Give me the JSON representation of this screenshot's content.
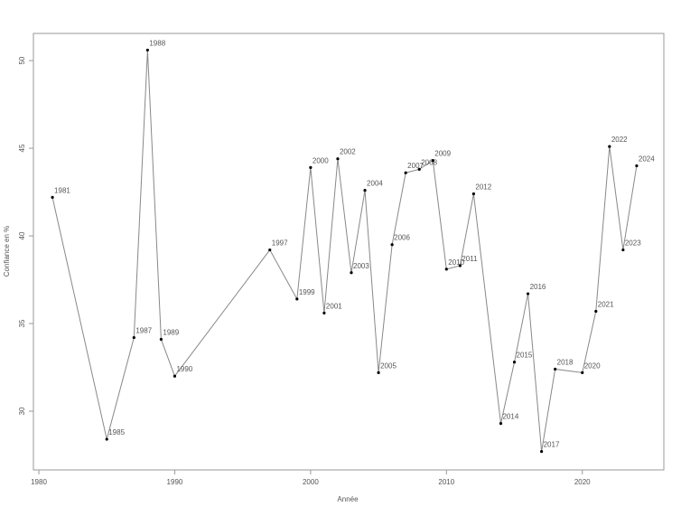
{
  "chart_data": {
    "type": "line",
    "x_label": "Année",
    "y_label": "Confiance en %",
    "x": [
      1981,
      1985,
      1987,
      1988,
      1989,
      1990,
      1997,
      1999,
      2000,
      2001,
      2002,
      2003,
      2004,
      2005,
      2006,
      2007,
      2008,
      2009,
      2010,
      2011,
      2012,
      2014,
      2015,
      2016,
      2017,
      2018,
      2020,
      2021,
      2022,
      2023,
      2024
    ],
    "series": [
      {
        "color": "#888888",
        "marker_color": "#000000",
        "values": [
          42.2,
          28.4,
          34.2,
          50.6,
          34.1,
          32.0,
          39.2,
          36.4,
          43.9,
          35.6,
          44.4,
          37.9,
          42.6,
          32.2,
          39.5,
          43.6,
          43.8,
          44.3,
          38.1,
          38.3,
          42.4,
          29.3,
          32.8,
          36.7,
          27.7,
          32.4,
          32.2,
          35.7,
          45.1,
          39.2,
          44.0
        ]
      }
    ],
    "xlim": [
      1979.6,
      2026.0
    ],
    "xticks": [
      1980,
      1990,
      2000,
      2010,
      2020
    ],
    "ylim": [
      26.65,
      51.55
    ],
    "yticks": [
      30,
      35,
      40,
      45,
      50
    ]
  }
}
